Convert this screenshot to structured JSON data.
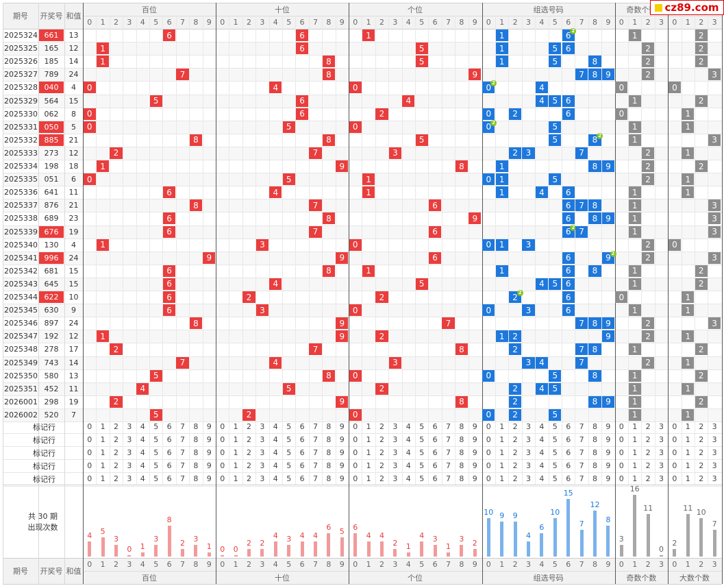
{
  "header": {
    "period_label": "期号",
    "number_label": "开奖号",
    "sum_label": "和值",
    "groups": [
      "百位",
      "十位",
      "个位",
      "组选号码",
      "奇数个数",
      "大数个数"
    ],
    "logo_text": "cz89.com"
  },
  "draws": [
    {
      "period": "2025324",
      "number": "661",
      "sum": "13",
      "highlight": true
    },
    {
      "period": "2025325",
      "number": "165",
      "sum": "12",
      "highlight": false
    },
    {
      "period": "2025326",
      "number": "185",
      "sum": "14",
      "highlight": false
    },
    {
      "period": "2025327",
      "number": "789",
      "sum": "24",
      "highlight": false
    },
    {
      "period": "2025328",
      "number": "040",
      "sum": "4",
      "highlight": true
    },
    {
      "period": "2025329",
      "number": "564",
      "sum": "15",
      "highlight": false
    },
    {
      "period": "2025330",
      "number": "062",
      "sum": "8",
      "highlight": false
    },
    {
      "period": "2025331",
      "number": "050",
      "sum": "5",
      "highlight": true
    },
    {
      "period": "2025332",
      "number": "885",
      "sum": "21",
      "highlight": true
    },
    {
      "period": "2025333",
      "number": "273",
      "sum": "12",
      "highlight": false
    },
    {
      "period": "2025334",
      "number": "198",
      "sum": "18",
      "highlight": false
    },
    {
      "period": "2025335",
      "number": "051",
      "sum": "6",
      "highlight": false
    },
    {
      "period": "2025336",
      "number": "641",
      "sum": "11",
      "highlight": false
    },
    {
      "period": "2025337",
      "number": "876",
      "sum": "21",
      "highlight": false
    },
    {
      "period": "2025338",
      "number": "689",
      "sum": "23",
      "highlight": false
    },
    {
      "period": "2025339",
      "number": "676",
      "sum": "19",
      "highlight": true
    },
    {
      "period": "2025340",
      "number": "130",
      "sum": "4",
      "highlight": false
    },
    {
      "period": "2025341",
      "number": "996",
      "sum": "24",
      "highlight": true
    },
    {
      "period": "2025342",
      "number": "681",
      "sum": "15",
      "highlight": false
    },
    {
      "period": "2025343",
      "number": "645",
      "sum": "15",
      "highlight": false
    },
    {
      "period": "2025344",
      "number": "622",
      "sum": "10",
      "highlight": true
    },
    {
      "period": "2025345",
      "number": "630",
      "sum": "9",
      "highlight": false
    },
    {
      "period": "2025346",
      "number": "897",
      "sum": "24",
      "highlight": false
    },
    {
      "period": "2025347",
      "number": "192",
      "sum": "12",
      "highlight": false
    },
    {
      "period": "2025348",
      "number": "278",
      "sum": "17",
      "highlight": false
    },
    {
      "period": "2025349",
      "number": "743",
      "sum": "14",
      "highlight": false
    },
    {
      "period": "2025350",
      "number": "580",
      "sum": "13",
      "highlight": false
    },
    {
      "period": "2025351",
      "number": "452",
      "sum": "11",
      "highlight": false
    },
    {
      "period": "2026001",
      "number": "298",
      "sum": "19",
      "highlight": false
    },
    {
      "period": "2026002",
      "number": "520",
      "sum": "7",
      "highlight": false
    }
  ],
  "mark_rows": {
    "label": "标记行",
    "count": 5
  },
  "summary": {
    "total_prefix": "共",
    "total_periods": "30",
    "total_suffix": "期",
    "caption": "出现次数",
    "hundreds": [
      4,
      5,
      3,
      0,
      1,
      3,
      8,
      2,
      3,
      1
    ],
    "tens": [
      0,
      0,
      2,
      2,
      4,
      3,
      4,
      4,
      6,
      5
    ],
    "units": [
      6,
      4,
      4,
      2,
      1,
      4,
      3,
      1,
      3,
      2
    ],
    "group": [
      10,
      9,
      9,
      4,
      6,
      10,
      15,
      7,
      12,
      8
    ],
    "odd_count": [
      3,
      16,
      11,
      0
    ],
    "big_count": [
      2,
      11,
      10,
      7
    ]
  },
  "colors": {
    "red": "#ea3d3d",
    "blue": "#1e78dc",
    "gray": "#8c8c8c",
    "bar_red": "#f29a9a",
    "bar_blue": "#7ab3ec",
    "bar_gray": "#a8a8a8",
    "badge": "#7fc21b"
  }
}
